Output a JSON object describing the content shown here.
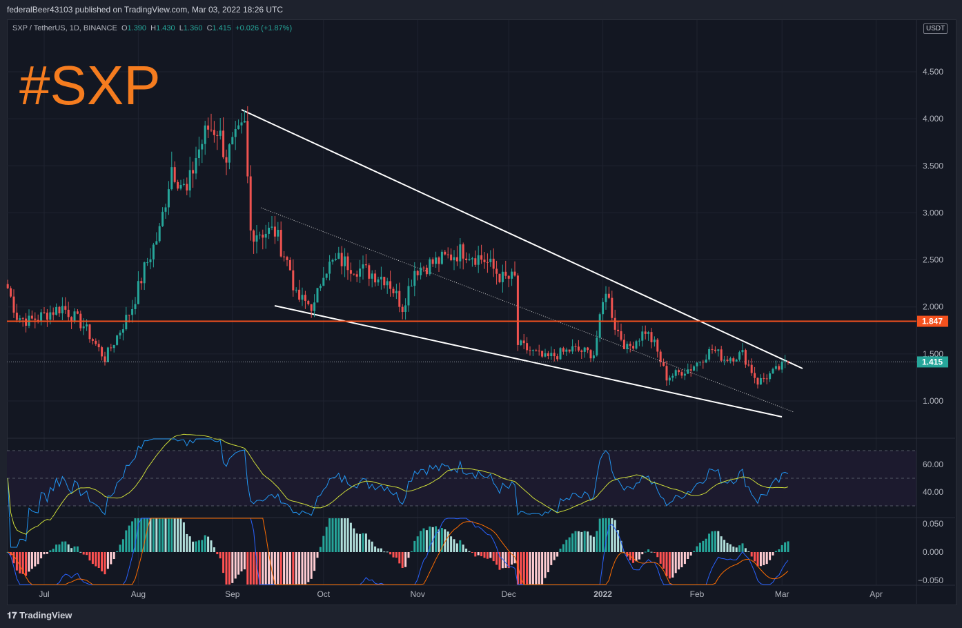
{
  "header": {
    "published": "federalBeer43103 published on TradingView.com, Mar 03, 2022 18:26 UTC"
  },
  "legend": {
    "symbol": "SXP / TetherUS, 1D, BINANCE",
    "o_label": "O",
    "o": "1.390",
    "h_label": "H",
    "h": "1.430",
    "l_label": "L",
    "l": "1.360",
    "c_label": "C",
    "c": "1.415",
    "change": "+0.026 (+1.87%)"
  },
  "overlay_text": "#SXP",
  "currency": "USDT",
  "footer": {
    "brand": "TradingView"
  },
  "colors": {
    "up": "#26a69a",
    "down": "#ef5350",
    "level": "#f4511e",
    "last": "#26a69a"
  },
  "chart_data": {
    "type": "candlestick",
    "title": "SXP / TetherUS, 1D, BINANCE",
    "price_ticks": [
      "4.500",
      "4.000",
      "3.500",
      "3.000",
      "2.500",
      "2.000",
      "1.500",
      "1.000"
    ],
    "price_tick_values": [
      4.5,
      4.0,
      3.5,
      3.0,
      2.5,
      2.0,
      1.5,
      1.0
    ],
    "ylim": [
      0.6,
      4.95
    ],
    "x_ticks": [
      {
        "label": "Jul",
        "day": 0
      },
      {
        "label": "Aug",
        "day": 31
      },
      {
        "label": "Sep",
        "day": 62
      },
      {
        "label": "Oct",
        "day": 92
      },
      {
        "label": "Nov",
        "day": 123
      },
      {
        "label": "Dec",
        "day": 153
      },
      {
        "label": "2022",
        "day": 184
      },
      {
        "label": "Feb",
        "day": 215
      },
      {
        "label": "Mar",
        "day": 243
      },
      {
        "label": "Apr",
        "day": 274
      }
    ],
    "close_keypoints": [
      [
        -12,
        2.2
      ],
      [
        -9,
        1.9
      ],
      [
        -5,
        1.85
      ],
      [
        -1,
        1.9
      ],
      [
        6,
        2.0
      ],
      [
        13,
        1.8
      ],
      [
        20,
        1.45
      ],
      [
        25,
        1.75
      ],
      [
        29,
        2.0
      ],
      [
        33,
        2.4
      ],
      [
        38,
        2.8
      ],
      [
        42,
        3.5
      ],
      [
        47,
        3.2
      ],
      [
        50,
        3.6
      ],
      [
        54,
        3.9
      ],
      [
        57,
        3.9
      ],
      [
        60,
        3.6
      ],
      [
        66,
        3.9
      ],
      [
        68,
        2.8
      ],
      [
        70,
        2.8
      ],
      [
        76,
        2.8
      ],
      [
        81,
        2.4
      ],
      [
        83,
        2.1
      ],
      [
        89,
        2.0
      ],
      [
        92,
        2.4
      ],
      [
        97,
        2.5
      ],
      [
        104,
        2.4
      ],
      [
        113,
        2.3
      ],
      [
        118,
        2.0
      ],
      [
        122,
        2.4
      ],
      [
        131,
        2.5
      ],
      [
        138,
        2.6
      ],
      [
        145,
        2.5
      ],
      [
        151,
        2.3
      ],
      [
        155,
        2.3
      ],
      [
        156,
        1.6
      ],
      [
        165,
        1.45
      ],
      [
        174,
        1.55
      ],
      [
        181,
        1.5
      ],
      [
        185,
        2.2
      ],
      [
        188,
        1.8
      ],
      [
        192,
        1.55
      ],
      [
        198,
        1.75
      ],
      [
        201,
        1.6
      ],
      [
        205,
        1.25
      ],
      [
        213,
        1.35
      ],
      [
        220,
        1.55
      ],
      [
        224,
        1.45
      ],
      [
        230,
        1.5
      ],
      [
        235,
        1.2
      ],
      [
        240,
        1.3
      ],
      [
        245,
        1.415
      ]
    ],
    "horizontal_level": {
      "value": 1.847,
      "label": "1.847"
    },
    "last_price": {
      "value": 1.415,
      "label": "1.415"
    },
    "rsi": {
      "ticks": [
        "60.00",
        "40.00"
      ],
      "tick_values": [
        60,
        40
      ],
      "bands": [
        70,
        50,
        30
      ],
      "period": 14
    },
    "macd": {
      "ticks": [
        "0.050",
        "0.000",
        "−0.050"
      ],
      "tick_values": [
        0.05,
        0,
        -0.05
      ]
    }
  }
}
